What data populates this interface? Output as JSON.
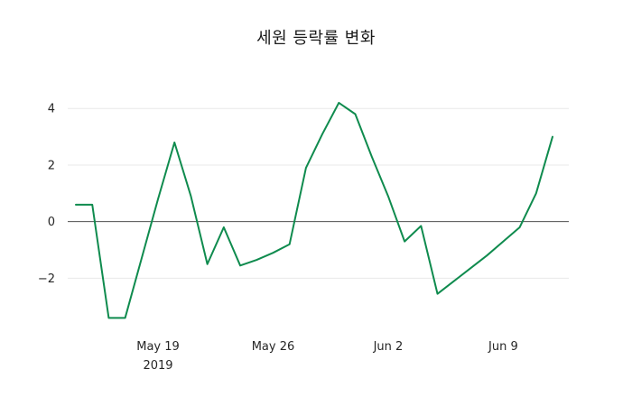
{
  "colors": {
    "line": "#0f8b4e",
    "grid": "#e8e8e8",
    "zero_line": "#515151",
    "text": "#1a1a1a"
  },
  "chart_data": {
    "type": "line",
    "title": "세원 등락률 변화",
    "xlabel": "",
    "ylabel": "",
    "legend": "none",
    "grid": "horizontal",
    "ylim": [
      -3.9,
      4.9
    ],
    "x": [
      "May 14",
      "May 15",
      "May 16",
      "May 17",
      "May 18",
      "May 19",
      "May 20",
      "May 21",
      "May 22",
      "May 23",
      "May 24",
      "May 25",
      "May 26",
      "May 27",
      "May 28",
      "May 29",
      "May 30",
      "May 31",
      "Jun 1",
      "Jun 2",
      "Jun 3",
      "Jun 4",
      "Jun 5",
      "Jun 6",
      "Jun 7",
      "Jun 8",
      "Jun 9",
      "Jun 10",
      "Jun 11",
      "Jun 12"
    ],
    "values": [
      0.6,
      0.6,
      -3.4,
      -3.4,
      -1.3,
      0.8,
      2.8,
      0.9,
      -1.5,
      -0.2,
      -1.55,
      -1.35,
      -1.1,
      -0.8,
      1.9,
      3.1,
      4.2,
      3.8,
      2.3,
      0.9,
      -0.7,
      -0.15,
      -2.55,
      -2.1,
      -1.65,
      -1.2,
      -0.7,
      -0.2,
      1.0,
      3.0
    ],
    "yticks": [
      {
        "value": -2,
        "label": "−2"
      },
      {
        "value": 0,
        "label": "0"
      },
      {
        "value": 2,
        "label": "2"
      },
      {
        "value": 4,
        "label": "4"
      }
    ],
    "xticks": [
      {
        "at": "May 19",
        "label": "May 19",
        "sublabel": "2019"
      },
      {
        "at": "May 26",
        "label": "May 26",
        "sublabel": ""
      },
      {
        "at": "Jun 2",
        "label": "Jun 2",
        "sublabel": ""
      },
      {
        "at": "Jun 9",
        "label": "Jun 9",
        "sublabel": ""
      }
    ]
  }
}
